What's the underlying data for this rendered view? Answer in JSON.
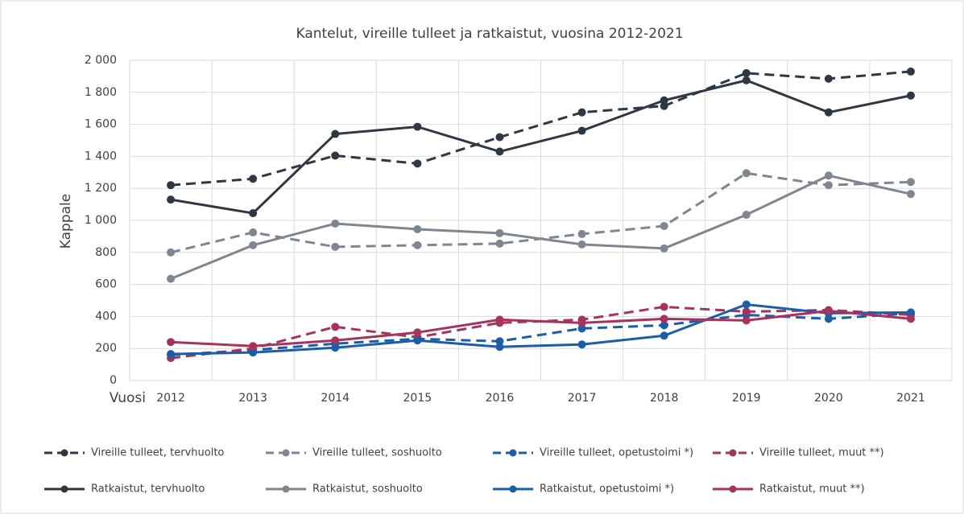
{
  "chart_data": {
    "type": "line",
    "title": "Kantelut, vireille tulleet ja ratkaistut, vuosina 2012-2021",
    "y_label": "Kappale",
    "x_label": "Vuosi",
    "categories": [
      "2012",
      "2013",
      "2014",
      "2015",
      "2016",
      "2017",
      "2018",
      "2019",
      "2020",
      "2021"
    ],
    "ylim": [
      0,
      2000
    ],
    "yticks": [
      0,
      200,
      400,
      600,
      800,
      {
        "value": 1000,
        "label": "1 000"
      },
      {
        "value": 1200,
        "label": "1 200"
      },
      {
        "value": 1400,
        "label": "1 400"
      },
      {
        "value": 1600,
        "label": "1 600"
      },
      {
        "value": 1800,
        "label": "1 800"
      },
      {
        "value": 2000,
        "label": "2 000"
      }
    ],
    "grid": true,
    "legend": "bottom",
    "series": [
      {
        "name": "Vireille tulleet, tervhuolto",
        "color": "#2f3742",
        "dashed": true,
        "values": [
          1220,
          1260,
          1405,
          1355,
          1520,
          1675,
          1715,
          1920,
          1885,
          1930
        ]
      },
      {
        "name": "Vireille tulleet, soshuolto",
        "color": "#7f868f",
        "dashed": true,
        "values": [
          800,
          925,
          835,
          845,
          855,
          915,
          965,
          1295,
          1220,
          1240
        ]
      },
      {
        "name": "Vireille tulleet, opetustoimi *)",
        "color": "#1a5da8",
        "dashed": true,
        "values": [
          160,
          190,
          230,
          260,
          245,
          325,
          345,
          410,
          385,
          420
        ]
      },
      {
        "name": "Vireille tulleet, muut **)",
        "color": "#a8325e",
        "dashed": true,
        "values": [
          140,
          200,
          335,
          270,
          360,
          380,
          460,
          430,
          440,
          410
        ]
      },
      {
        "name": "Ratkaistut, tervhuolto",
        "color": "#2f3742",
        "dashed": false,
        "values": [
          1130,
          1045,
          1540,
          1585,
          1430,
          1560,
          1750,
          1875,
          1675,
          1780
        ]
      },
      {
        "name": "Ratkaistut, soshuolto",
        "color": "#7f868f",
        "dashed": false,
        "values": [
          635,
          845,
          980,
          945,
          920,
          850,
          825,
          1035,
          1280,
          1165
        ]
      },
      {
        "name": "Ratkaistut, opetustoimi *)",
        "color": "#1a5da8",
        "dashed": false,
        "values": [
          165,
          175,
          205,
          250,
          210,
          225,
          280,
          475,
          420,
          425
        ]
      },
      {
        "name": "Ratkaistut, muut **)",
        "color": "#a8325e",
        "dashed": false,
        "values": [
          240,
          215,
          250,
          300,
          380,
          360,
          385,
          375,
          435,
          385
        ]
      }
    ]
  }
}
